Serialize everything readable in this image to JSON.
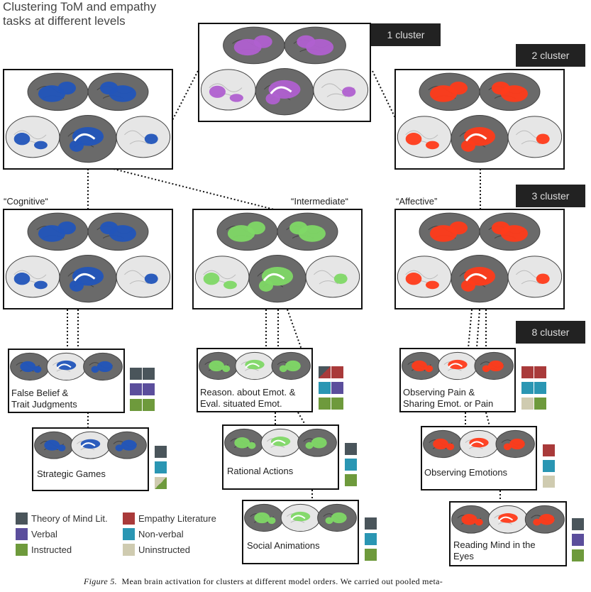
{
  "figure_title": "Clustering ToM and empathy tasks at different levels",
  "figure_title_line1": "Clustering ToM and empathy",
  "figure_title_line2": "tasks at different levels",
  "level_tags": {
    "one": "1 cluster",
    "two": "2 cluster",
    "three": "3 cluster",
    "eight": "8 cluster"
  },
  "group_labels": {
    "cognitive": "“Cognitive“",
    "intermediate": "“Intermediate“",
    "affective": "“Affective”"
  },
  "clusters": {
    "false_belief": "False Belief &\nTrait Judgments",
    "false_belief_1": "False Belief &",
    "false_belief_2": "Trait Judgments",
    "strategic": "Strategic Games",
    "reason_1": "Reason. about Emot. &",
    "reason_2": "Eval. situated Emot.",
    "rational": "Rational Actions",
    "social": "Social Animations",
    "pain_1": "Observing Pain &",
    "pain_2": "Sharing Emot. or Pain",
    "observing": "Observing Emotions",
    "rme_1": "Reading Mind in the",
    "rme_2": "Eyes"
  },
  "legend": {
    "tom": "Theory of Mind Lit.",
    "verbal": "Verbal",
    "instructed": "Instructed",
    "empathy": "Empathy Literature",
    "nonverbal": "Non-verbal",
    "uninstructed": "Uninstructed"
  },
  "colors": {
    "tom": "#4a555b",
    "verbal": "#5b4e9c",
    "instructed": "#6e9a3c",
    "empathy": "#a93a3a",
    "nonverbal": "#2a96b3",
    "uninstructed": "#cfcbb0",
    "purple": "#b060d0",
    "blue": "#2255bb",
    "red": "#ff3b1a",
    "green": "#7fd866"
  },
  "caption_label": "Figure 5.",
  "caption_text": "Mean brain activation for clusters at different model orders. We carried out pooled meta-"
}
